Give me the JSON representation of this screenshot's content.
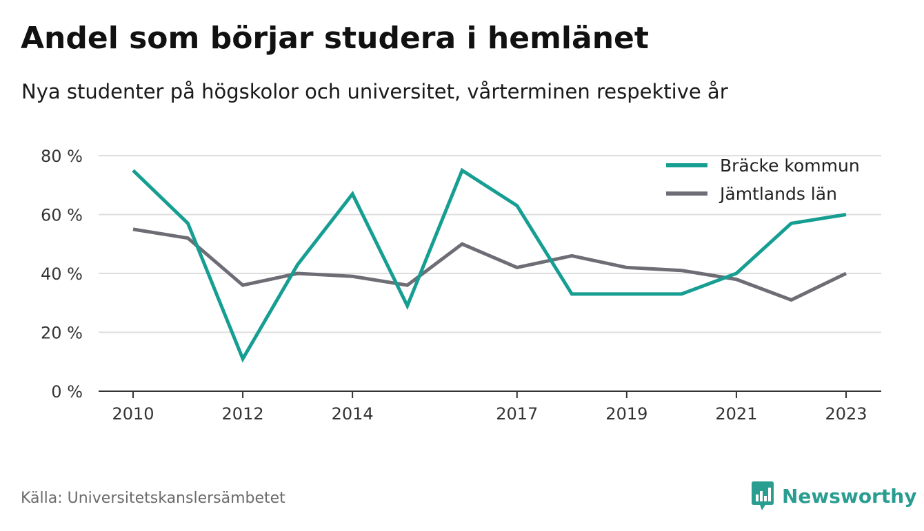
{
  "header": {
    "title": "Andel som börjar studera i hemlänet",
    "subtitle": "Nya studenter på högskolor och universitet, vårterminen respektive år"
  },
  "footer": {
    "source": "Källa: Universitetskanslersämbetet",
    "brand_name": "Newsworthy",
    "brand_icon": "newsworthy-logo-icon"
  },
  "colors": {
    "series_1": "#169e92",
    "series_2": "#6e6d75",
    "grid": "#dddddd",
    "axis": "#333333",
    "brand": "#2a9d91"
  },
  "chart_data": {
    "type": "line",
    "x": [
      2010,
      2011,
      2012,
      2013,
      2014,
      2015,
      2016,
      2017,
      2018,
      2019,
      2020,
      2021,
      2022,
      2023
    ],
    "x_tick_labels": [
      "2010",
      "2012",
      "2014",
      "2017",
      "2019",
      "2021",
      "2023"
    ],
    "y_tick_labels": [
      "0 %",
      "20 %",
      "40 %",
      "60 %",
      "80 %"
    ],
    "ylim": [
      0,
      80
    ],
    "grid": true,
    "legend_position": "top-right",
    "series": [
      {
        "name": "Bräcke kommun",
        "values": [
          75,
          57,
          11,
          43,
          67,
          29,
          75,
          63,
          33,
          33,
          33,
          40,
          57,
          60
        ]
      },
      {
        "name": "Jämtlands län",
        "values": [
          55,
          52,
          36,
          40,
          39,
          36,
          50,
          42,
          46,
          42,
          41,
          38,
          31,
          40
        ]
      }
    ]
  }
}
